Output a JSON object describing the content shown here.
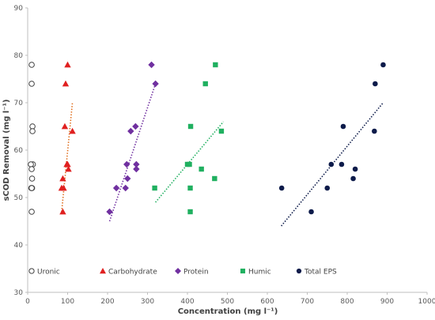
{
  "chart_data": {
    "type": "scatter",
    "title": "",
    "xlabel": "Concentration (mg l⁻¹)",
    "ylabel": "sCOD Removal (mg l⁻¹)",
    "xlim": [
      0,
      1000
    ],
    "ylim": [
      30,
      90
    ],
    "xticks": [
      0,
      100,
      200,
      300,
      400,
      500,
      600,
      700,
      800,
      900,
      1000
    ],
    "yticks": [
      30,
      40,
      50,
      60,
      70,
      80,
      90
    ],
    "grid": false,
    "legend_position": "bottom",
    "series": [
      {
        "name": "Uronic",
        "marker": "circle-open",
        "color": "#404040",
        "x": [
          10,
          10,
          12,
          12,
          13,
          8,
          10,
          11,
          9,
          11,
          10,
          10
        ],
        "y": [
          78,
          74,
          65,
          64,
          57,
          57,
          56,
          54,
          52,
          52,
          47,
          52
        ],
        "trendline": false
      },
      {
        "name": "Carbohydrate",
        "marker": "triangle",
        "color": "#e02020",
        "x": [
          100,
          95,
          93,
          112,
          98,
          100,
          102,
          88,
          85,
          90,
          88
        ],
        "y": [
          78,
          74,
          65,
          64,
          57,
          57,
          56,
          54,
          52,
          52,
          47
        ],
        "trendline": true,
        "trend_color": "#e07020",
        "trend_x": [
          85,
          112
        ],
        "trend_y": [
          47,
          70
        ]
      },
      {
        "name": "Protein",
        "marker": "diamond",
        "color": "#7030a0",
        "x": [
          310,
          320,
          270,
          258,
          248,
          272,
          272,
          250,
          222,
          245,
          205
        ],
        "y": [
          78,
          74,
          65,
          64,
          57,
          57,
          56,
          54,
          52,
          52,
          47
        ],
        "trendline": true,
        "trend_color": "#7030a0",
        "trend_x": [
          205,
          320
        ],
        "trend_y": [
          45,
          74
        ]
      },
      {
        "name": "Humic",
        "marker": "square",
        "color": "#20b060",
        "x": [
          470,
          445,
          408,
          485,
          400,
          405,
          435,
          468,
          318,
          407,
          407
        ],
        "y": [
          78,
          74,
          65,
          64,
          57,
          57,
          56,
          54,
          52,
          52,
          47
        ],
        "trendline": true,
        "trend_color": "#20b060",
        "trend_x": [
          320,
          490
        ],
        "trend_y": [
          49,
          66
        ]
      },
      {
        "name": "Total EPS",
        "marker": "circle",
        "color": "#0d1b4a",
        "x": [
          890,
          870,
          790,
          868,
          760,
          786,
          820,
          815,
          636,
          750,
          710
        ],
        "y": [
          78,
          74,
          65,
          64,
          57,
          57,
          56,
          54,
          52,
          52,
          47
        ],
        "trendline": true,
        "trend_color": "#0d1b4a",
        "trend_x": [
          635,
          890
        ],
        "trend_y": [
          44,
          70
        ]
      }
    ]
  }
}
